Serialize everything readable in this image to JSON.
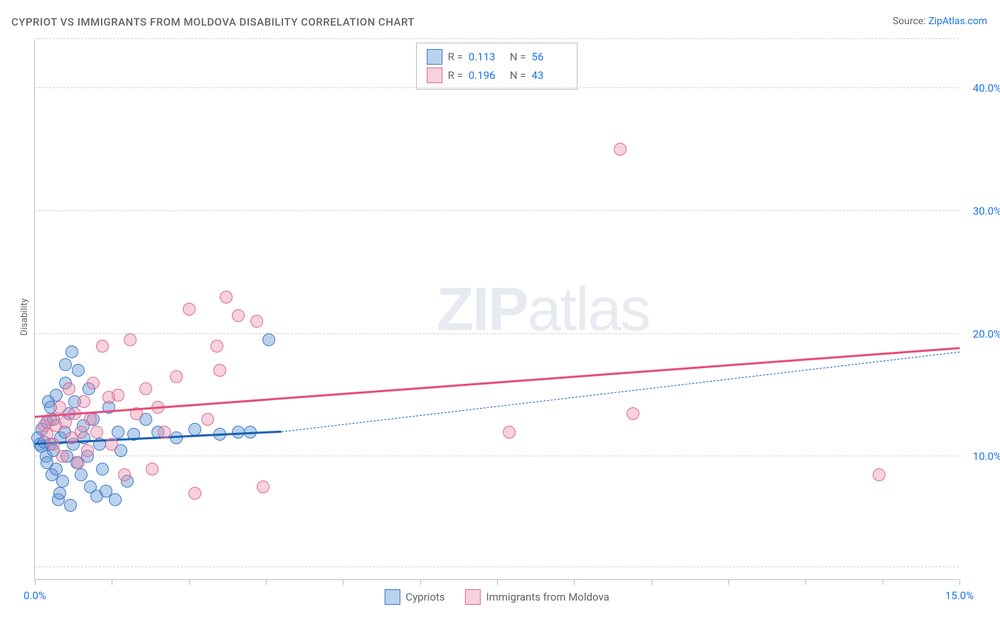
{
  "title": "CYPRIOT VS IMMIGRANTS FROM MOLDOVA DISABILITY CORRELATION CHART",
  "source_prefix": "Source: ",
  "source_link": "ZipAtlas.com",
  "y_axis_label": "Disability",
  "watermark_bold": "ZIP",
  "watermark_rest": "atlas",
  "chart": {
    "type": "scatter",
    "background_color": "#ffffff",
    "grid_color": "#d0d0d0",
    "axis_color": "#bdbdbd",
    "xlim": [
      0,
      15
    ],
    "ylim": [
      0,
      44
    ],
    "x_ticks": [
      0,
      1.25,
      2.5,
      3.75,
      5,
      6.25,
      7.5,
      8.75,
      10,
      11.25,
      12.5,
      13.75,
      15
    ],
    "x_tick_labels": {
      "0": "0.0%",
      "15": "15.0%"
    },
    "y_gridlines": [
      1,
      10,
      20,
      30,
      40,
      44
    ],
    "y_tick_labels": {
      "10": "10.0%",
      "20": "20.0%",
      "30": "30.0%",
      "40": "40.0%"
    },
    "marker_radius": 9,
    "marker_border_width": 1,
    "series": [
      {
        "name": "Cypriots",
        "fill": "rgba(103,155,217,0.45)",
        "stroke": "#3f78c0",
        "R": "0.113",
        "N": "56",
        "trend": {
          "x1": 0,
          "y1": 11.0,
          "x2": 4.0,
          "y2": 12.0,
          "color": "#1a5fb4",
          "width": 2.5,
          "dash": "none"
        },
        "trend_ext": {
          "x1": 4.0,
          "y1": 12.0,
          "x2": 15.0,
          "y2": 18.5,
          "color": "#1a5fb4",
          "width": 1.5,
          "dash": "6,5"
        },
        "points": [
          [
            0.05,
            11.5
          ],
          [
            0.08,
            11.0
          ],
          [
            0.1,
            10.8
          ],
          [
            0.12,
            12.2
          ],
          [
            0.15,
            11.2
          ],
          [
            0.18,
            10.0
          ],
          [
            0.2,
            9.5
          ],
          [
            0.2,
            12.8
          ],
          [
            0.22,
            14.5
          ],
          [
            0.25,
            14.0
          ],
          [
            0.25,
            11.0
          ],
          [
            0.28,
            8.5
          ],
          [
            0.3,
            10.5
          ],
          [
            0.3,
            13.0
          ],
          [
            0.35,
            15.0
          ],
          [
            0.35,
            9.0
          ],
          [
            0.38,
            6.5
          ],
          [
            0.4,
            7.0
          ],
          [
            0.42,
            11.5
          ],
          [
            0.45,
            8.0
          ],
          [
            0.48,
            12.0
          ],
          [
            0.5,
            16.0
          ],
          [
            0.5,
            17.5
          ],
          [
            0.52,
            10.0
          ],
          [
            0.55,
            13.5
          ],
          [
            0.58,
            6.0
          ],
          [
            0.6,
            18.5
          ],
          [
            0.62,
            11.0
          ],
          [
            0.65,
            14.5
          ],
          [
            0.68,
            9.5
          ],
          [
            0.7,
            17.0
          ],
          [
            0.75,
            8.5
          ],
          [
            0.78,
            12.5
          ],
          [
            0.8,
            11.5
          ],
          [
            0.85,
            10.0
          ],
          [
            0.88,
            15.5
          ],
          [
            0.9,
            7.5
          ],
          [
            0.95,
            13.0
          ],
          [
            1.0,
            6.8
          ],
          [
            1.05,
            11.0
          ],
          [
            1.1,
            9.0
          ],
          [
            1.15,
            7.2
          ],
          [
            1.2,
            14.0
          ],
          [
            1.3,
            6.5
          ],
          [
            1.35,
            12.0
          ],
          [
            1.4,
            10.5
          ],
          [
            1.5,
            8.0
          ],
          [
            1.6,
            11.8
          ],
          [
            1.8,
            13.0
          ],
          [
            2.0,
            12.0
          ],
          [
            2.3,
            11.5
          ],
          [
            2.6,
            12.2
          ],
          [
            3.0,
            11.8
          ],
          [
            3.3,
            12.0
          ],
          [
            3.5,
            12.0
          ],
          [
            3.8,
            19.5
          ]
        ]
      },
      {
        "name": "Immigrants from Moldova",
        "fill": "rgba(235,140,170,0.40)",
        "stroke": "#d96a94",
        "R": "0.196",
        "N": "43",
        "trend": {
          "x1": 0,
          "y1": 13.2,
          "x2": 15.0,
          "y2": 18.8,
          "color": "#e54d7a",
          "width": 2.5,
          "dash": "none"
        },
        "points": [
          [
            0.15,
            12.5
          ],
          [
            0.2,
            11.8
          ],
          [
            0.25,
            13.0
          ],
          [
            0.3,
            11.0
          ],
          [
            0.35,
            12.5
          ],
          [
            0.4,
            14.0
          ],
          [
            0.45,
            10.0
          ],
          [
            0.5,
            12.8
          ],
          [
            0.55,
            15.5
          ],
          [
            0.6,
            11.5
          ],
          [
            0.65,
            13.5
          ],
          [
            0.7,
            9.5
          ],
          [
            0.75,
            12.0
          ],
          [
            0.8,
            14.5
          ],
          [
            0.85,
            10.5
          ],
          [
            0.9,
            13.0
          ],
          [
            0.95,
            16.0
          ],
          [
            1.0,
            12.0
          ],
          [
            1.1,
            19.0
          ],
          [
            1.2,
            14.8
          ],
          [
            1.25,
            11.0
          ],
          [
            1.35,
            15.0
          ],
          [
            1.45,
            8.5
          ],
          [
            1.55,
            19.5
          ],
          [
            1.65,
            13.5
          ],
          [
            1.8,
            15.5
          ],
          [
            1.9,
            9.0
          ],
          [
            2.0,
            14.0
          ],
          [
            2.1,
            12.0
          ],
          [
            2.3,
            16.5
          ],
          [
            2.5,
            22.0
          ],
          [
            2.6,
            7.0
          ],
          [
            2.8,
            13.0
          ],
          [
            2.95,
            19.0
          ],
          [
            3.0,
            17.0
          ],
          [
            3.1,
            23.0
          ],
          [
            3.3,
            21.5
          ],
          [
            3.6,
            21.0
          ],
          [
            3.7,
            7.5
          ],
          [
            7.7,
            12.0
          ],
          [
            9.5,
            35.0
          ],
          [
            9.7,
            13.5
          ],
          [
            13.7,
            8.5
          ]
        ]
      }
    ]
  },
  "stats_legend": {
    "R_label": "R  =",
    "N_label": "N  ="
  },
  "bottom_legend": {
    "items": [
      "Cypriots",
      "Immigrants from Moldova"
    ]
  }
}
